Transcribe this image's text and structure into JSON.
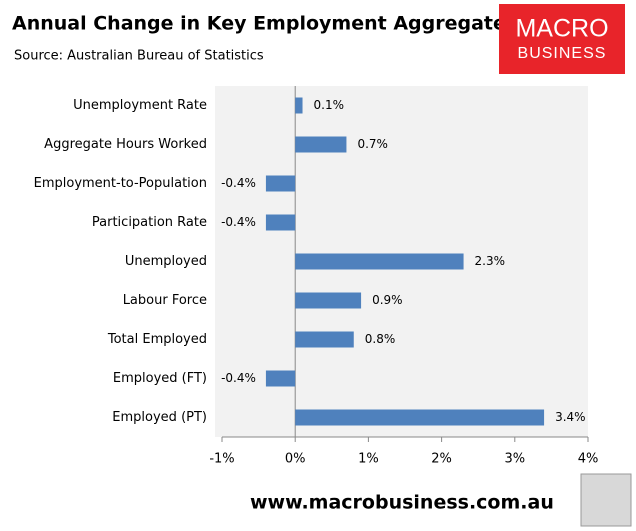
{
  "chart_data": {
    "type": "hbar",
    "title": "Annual Change in Key Employment Aggregates",
    "subtitle": "Source: Australian Bureau of Statistics",
    "logo": [
      "MACRO",
      "BUSINESS"
    ],
    "footer": "www.macrobusiness.com.au",
    "categories": [
      "Unemployment Rate",
      "Aggregate Hours Worked",
      "Employment-to-Population",
      "Participation Rate",
      "Unemployed",
      "Labour Force",
      "Total Employed",
      "Employed (FT)",
      "Employed (PT)"
    ],
    "values": [
      0.1,
      0.7,
      -0.4,
      -0.4,
      2.3,
      0.9,
      0.8,
      -0.4,
      3.4
    ],
    "value_labels": [
      "0.1%",
      "0.7%",
      "-0.4%",
      "-0.4%",
      "2.3%",
      "0.9%",
      "0.8%",
      "-0.4%",
      "3.4%"
    ],
    "color": "#4f81bd",
    "xlim": [
      -1,
      4
    ],
    "xticks": [
      {
        "value": -1,
        "label": "-1%"
      },
      {
        "value": 0,
        "label": "0%"
      },
      {
        "value": 1,
        "label": "1%"
      },
      {
        "value": 2,
        "label": "2%"
      },
      {
        "value": 3,
        "label": "3%"
      },
      {
        "value": 4,
        "label": "4%"
      }
    ]
  }
}
